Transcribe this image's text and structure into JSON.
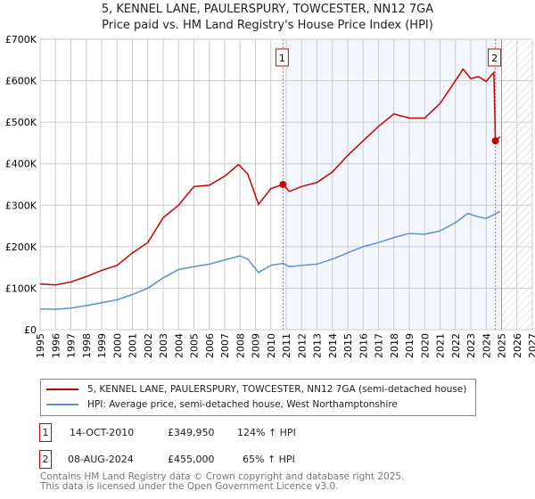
{
  "chart_data": {
    "type": "line",
    "title": "5, KENNEL LANE, PAULERSPURY, TOWCESTER, NN12 7GA",
    "subtitle": "Price paid vs. HM Land Registry's House Price Index (HPI)",
    "xlim": [
      1995,
      2027
    ],
    "ylim": [
      0,
      700000
    ],
    "x_ticks": [
      "1995",
      "1996",
      "1997",
      "1998",
      "1999",
      "2000",
      "2001",
      "2002",
      "2003",
      "2004",
      "2005",
      "2006",
      "2007",
      "2008",
      "2009",
      "2010",
      "2011",
      "2012",
      "2013",
      "2014",
      "2015",
      "2016",
      "2017",
      "2018",
      "2019",
      "2020",
      "2021",
      "2022",
      "2023",
      "2024",
      "2025",
      "2026",
      "2027"
    ],
    "y_ticks": [
      {
        "v": 0,
        "label": "£0"
      },
      {
        "v": 100000,
        "label": "£100K"
      },
      {
        "v": 200000,
        "label": "£200K"
      },
      {
        "v": 300000,
        "label": "£300K"
      },
      {
        "v": 400000,
        "label": "£400K"
      },
      {
        "v": 500000,
        "label": "£500K"
      },
      {
        "v": 600000,
        "label": "£600K"
      },
      {
        "v": 700000,
        "label": "£700K"
      }
    ],
    "grid": true,
    "series": [
      {
        "name": "5, KENNEL LANE, PAULERSPURY, TOWCESTER, NN12 7GA (semi-detached house)",
        "color": "#cc0000",
        "points": [
          [
            1995,
            110000
          ],
          [
            1996,
            108000
          ],
          [
            1997,
            115000
          ],
          [
            1998,
            128000
          ],
          [
            1999,
            143000
          ],
          [
            2000,
            155000
          ],
          [
            2001,
            185000
          ],
          [
            2002,
            210000
          ],
          [
            2003,
            270000
          ],
          [
            2004,
            300000
          ],
          [
            2005,
            345000
          ],
          [
            2006,
            348000
          ],
          [
            2007,
            370000
          ],
          [
            2007.9,
            398000
          ],
          [
            2008.5,
            375000
          ],
          [
            2009.2,
            302000
          ],
          [
            2010,
            340000
          ],
          [
            2010.79,
            349950
          ],
          [
            2011.2,
            333000
          ],
          [
            2012,
            345000
          ],
          [
            2013,
            355000
          ],
          [
            2014,
            380000
          ],
          [
            2015,
            420000
          ],
          [
            2016,
            455000
          ],
          [
            2017,
            490000
          ],
          [
            2018,
            520000
          ],
          [
            2019,
            510000
          ],
          [
            2020,
            510000
          ],
          [
            2021,
            545000
          ],
          [
            2022,
            600000
          ],
          [
            2022.5,
            628000
          ],
          [
            2023,
            605000
          ],
          [
            2023.5,
            610000
          ],
          [
            2024,
            598000
          ],
          [
            2024.5,
            620000
          ],
          [
            2024.6,
            455000
          ],
          [
            2024.9,
            465000
          ]
        ]
      },
      {
        "name": "HPI: Average price, semi-detached house, West Northamptonshire",
        "color": "#5b8fd4",
        "points": [
          [
            1995,
            50000
          ],
          [
            1996,
            49000
          ],
          [
            1997,
            52000
          ],
          [
            1998,
            58000
          ],
          [
            1999,
            65000
          ],
          [
            2000,
            72000
          ],
          [
            2001,
            85000
          ],
          [
            2002,
            100000
          ],
          [
            2003,
            125000
          ],
          [
            2004,
            145000
          ],
          [
            2005,
            152000
          ],
          [
            2006,
            158000
          ],
          [
            2007,
            168000
          ],
          [
            2008,
            178000
          ],
          [
            2008.5,
            170000
          ],
          [
            2009.2,
            138000
          ],
          [
            2010,
            155000
          ],
          [
            2010.79,
            160000
          ],
          [
            2011.2,
            152000
          ],
          [
            2012,
            155000
          ],
          [
            2013,
            158000
          ],
          [
            2014,
            170000
          ],
          [
            2015,
            185000
          ],
          [
            2016,
            200000
          ],
          [
            2017,
            210000
          ],
          [
            2018,
            222000
          ],
          [
            2019,
            232000
          ],
          [
            2020,
            230000
          ],
          [
            2021,
            238000
          ],
          [
            2022,
            258000
          ],
          [
            2022.8,
            280000
          ],
          [
            2023.5,
            272000
          ],
          [
            2024,
            268000
          ],
          [
            2024.9,
            285000
          ]
        ]
      }
    ],
    "annotations": [
      {
        "label": "1",
        "x": 2010.79,
        "y": 349950
      },
      {
        "label": "2",
        "x": 2024.6,
        "y": 455000
      }
    ],
    "shaded_from": 2010.79,
    "hatched_from": 2025,
    "legend": "below"
  },
  "sales": [
    {
      "num": "1",
      "date": "14-OCT-2010",
      "price": "£349,950",
      "hpi": "124% ↑ HPI"
    },
    {
      "num": "2",
      "date": "08-AUG-2024",
      "price": "£455,000",
      "hpi": "65% ↑ HPI"
    }
  ],
  "footer": [
    "Contains HM Land Registry data © Crown copyright and database right 2025.",
    "This data is licensed under the Open Government Licence v3.0."
  ]
}
